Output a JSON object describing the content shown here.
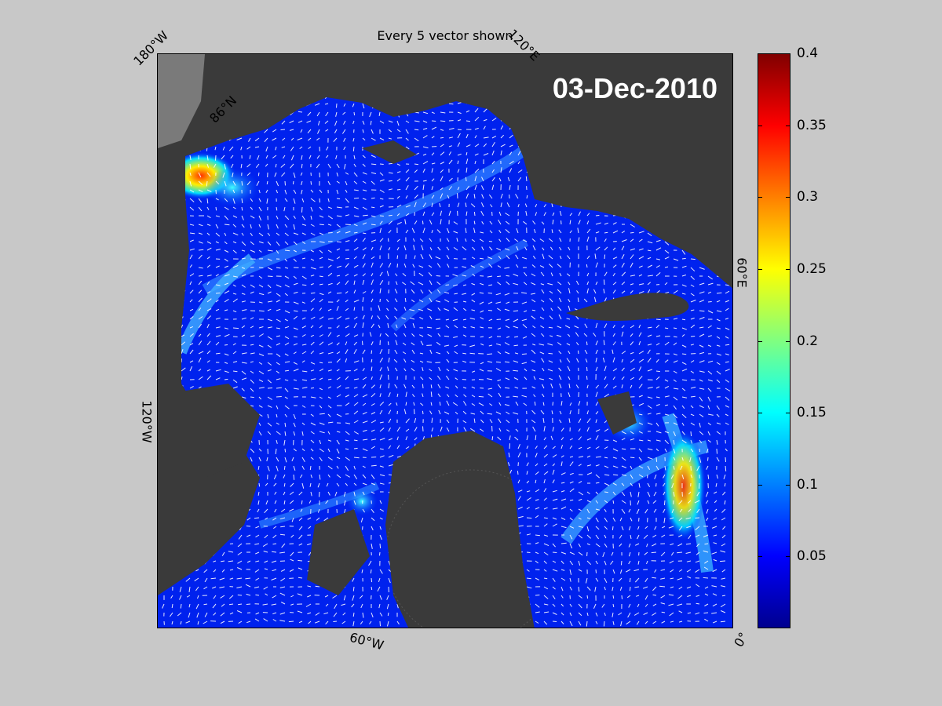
{
  "plot": {
    "title": "Every 5 vector shown",
    "date": "03-Dec-2010"
  },
  "map_labels": {
    "lon_180w": "180°W",
    "lon_120e": "120°E",
    "lon_60e": "60°E",
    "lon_120w": "120°W",
    "lon_60w": "60°W",
    "lon_0": "0°",
    "lat_86n": "86°N"
  },
  "colorbar": {
    "colormap": "jet",
    "min": 0,
    "max": 0.4,
    "ticks": [
      "0.05",
      "0.1",
      "0.15",
      "0.2",
      "0.25",
      "0.3",
      "0.35",
      "0.4"
    ]
  },
  "colors": {
    "background": "#c8c8c8",
    "land": "#3a3a3a",
    "ocean_low": "#0022ee",
    "vectors": "#ffffff"
  }
}
